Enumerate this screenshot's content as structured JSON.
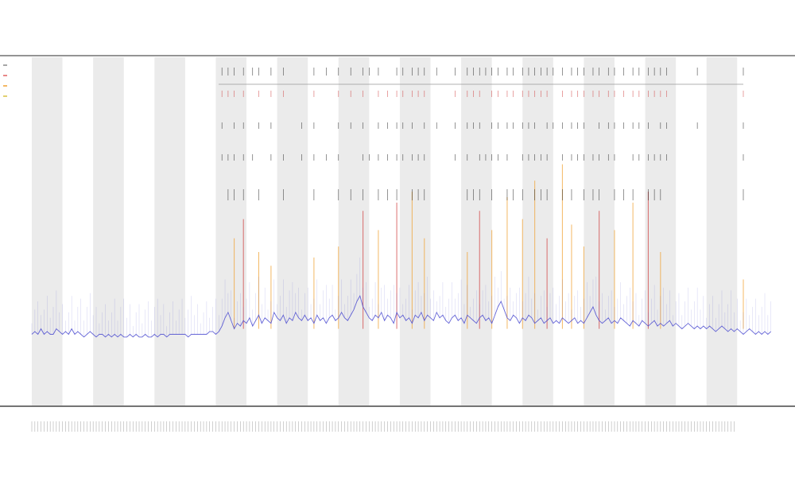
{
  "chart_data": {
    "type": "line",
    "title": "",
    "subtitle": "",
    "xlabel": "",
    "ylabel": "",
    "grid": false,
    "legend_position": "top-left",
    "legend": [
      {
        "name": "",
        "color": "#888888"
      },
      {
        "name": "",
        "color": "#e06060"
      },
      {
        "name": "",
        "color": "#f0a030"
      },
      {
        "name": "",
        "color": "#d8c040"
      }
    ],
    "colors": {
      "main_line": "#4a4ad0",
      "spike_orange": "#f0a030",
      "spike_red": "#d04040",
      "spike_black": "#202020",
      "band": "#ebebeb",
      "axis": "#555555"
    },
    "x_count": 240,
    "band_period": 10,
    "series": [
      {
        "name": "",
        "values": [
          0.1,
          0.11,
          0.1,
          0.12,
          0.1,
          0.11,
          0.1,
          0.1,
          0.12,
          0.11,
          0.1,
          0.11,
          0.1,
          0.12,
          0.1,
          0.11,
          0.1,
          0.09,
          0.1,
          0.11,
          0.1,
          0.09,
          0.1,
          0.1,
          0.09,
          0.1,
          0.09,
          0.1,
          0.09,
          0.1,
          0.09,
          0.09,
          0.1,
          0.09,
          0.1,
          0.09,
          0.09,
          0.1,
          0.09,
          0.09,
          0.1,
          0.09,
          0.1,
          0.1,
          0.09,
          0.1,
          0.1,
          0.1,
          0.1,
          0.1,
          0.1,
          0.09,
          0.1,
          0.1,
          0.1,
          0.1,
          0.1,
          0.1,
          0.11,
          0.11,
          0.1,
          0.11,
          0.13,
          0.16,
          0.18,
          0.15,
          0.12,
          0.14,
          0.13,
          0.15,
          0.14,
          0.16,
          0.13,
          0.15,
          0.17,
          0.14,
          0.16,
          0.15,
          0.14,
          0.18,
          0.16,
          0.15,
          0.17,
          0.14,
          0.16,
          0.15,
          0.18,
          0.16,
          0.15,
          0.17,
          0.15,
          0.16,
          0.14,
          0.17,
          0.15,
          0.16,
          0.14,
          0.16,
          0.17,
          0.15,
          0.16,
          0.18,
          0.16,
          0.15,
          0.17,
          0.19,
          0.22,
          0.24,
          0.2,
          0.18,
          0.16,
          0.15,
          0.17,
          0.16,
          0.18,
          0.15,
          0.17,
          0.16,
          0.14,
          0.18,
          0.16,
          0.17,
          0.15,
          0.16,
          0.14,
          0.17,
          0.16,
          0.18,
          0.15,
          0.17,
          0.16,
          0.15,
          0.18,
          0.16,
          0.17,
          0.15,
          0.14,
          0.16,
          0.17,
          0.15,
          0.16,
          0.14,
          0.17,
          0.16,
          0.15,
          0.14,
          0.16,
          0.17,
          0.15,
          0.16,
          0.14,
          0.17,
          0.2,
          0.22,
          0.19,
          0.16,
          0.15,
          0.17,
          0.16,
          0.14,
          0.16,
          0.15,
          0.17,
          0.16,
          0.14,
          0.15,
          0.16,
          0.14,
          0.15,
          0.16,
          0.14,
          0.15,
          0.14,
          0.16,
          0.15,
          0.14,
          0.15,
          0.16,
          0.14,
          0.15,
          0.14,
          0.16,
          0.18,
          0.2,
          0.17,
          0.15,
          0.14,
          0.15,
          0.16,
          0.14,
          0.15,
          0.14,
          0.16,
          0.15,
          0.14,
          0.13,
          0.15,
          0.14,
          0.13,
          0.15,
          0.14,
          0.13,
          0.14,
          0.15,
          0.13,
          0.14,
          0.13,
          0.14,
          0.15,
          0.13,
          0.14,
          0.13,
          0.12,
          0.13,
          0.14,
          0.13,
          0.12,
          0.13,
          0.12,
          0.13,
          0.12,
          0.13,
          0.12,
          0.11,
          0.12,
          0.13,
          0.12,
          0.11,
          0.12,
          0.11,
          0.12,
          0.11,
          0.1,
          0.11,
          0.12,
          0.11,
          0.1,
          0.11,
          0.1,
          0.11,
          0.1,
          0.11
        ]
      }
    ],
    "spikes": [
      {
        "x": 66,
        "value": 0.45,
        "color": "#f0a030"
      },
      {
        "x": 69,
        "value": 0.52,
        "color": "#d04040"
      },
      {
        "x": 74,
        "value": 0.4,
        "color": "#f0a030"
      },
      {
        "x": 78,
        "value": 0.35,
        "color": "#f0a030"
      },
      {
        "x": 92,
        "value": 0.38,
        "color": "#f0a030"
      },
      {
        "x": 100,
        "value": 0.42,
        "color": "#f0a030"
      },
      {
        "x": 108,
        "value": 0.55,
        "color": "#d04040"
      },
      {
        "x": 113,
        "value": 0.48,
        "color": "#f0a030"
      },
      {
        "x": 119,
        "value": 0.58,
        "color": "#d04040"
      },
      {
        "x": 124,
        "value": 0.62,
        "color": "#f0a030"
      },
      {
        "x": 128,
        "value": 0.45,
        "color": "#f0a030"
      },
      {
        "x": 142,
        "value": 0.4,
        "color": "#f0a030"
      },
      {
        "x": 146,
        "value": 0.55,
        "color": "#d04040"
      },
      {
        "x": 150,
        "value": 0.48,
        "color": "#f0a030"
      },
      {
        "x": 155,
        "value": 0.6,
        "color": "#f0a030"
      },
      {
        "x": 160,
        "value": 0.52,
        "color": "#f0a030"
      },
      {
        "x": 164,
        "value": 0.66,
        "color": "#f0a030"
      },
      {
        "x": 168,
        "value": 0.45,
        "color": "#d04040"
      },
      {
        "x": 173,
        "value": 0.72,
        "color": "#f0a030"
      },
      {
        "x": 176,
        "value": 0.5,
        "color": "#f0a030"
      },
      {
        "x": 180,
        "value": 0.42,
        "color": "#f0a030"
      },
      {
        "x": 185,
        "value": 0.55,
        "color": "#d04040"
      },
      {
        "x": 190,
        "value": 0.48,
        "color": "#f0a030"
      },
      {
        "x": 196,
        "value": 0.58,
        "color": "#f0a030"
      },
      {
        "x": 201,
        "value": 0.62,
        "color": "#d04040"
      },
      {
        "x": 205,
        "value": 0.4,
        "color": "#f0a030"
      },
      {
        "x": 232,
        "value": 0.3,
        "color": "#f0a030"
      }
    ],
    "markers": [
      {
        "x": 62,
        "rows": [
          1,
          2,
          3
        ]
      },
      {
        "x": 64,
        "rows": [
          1,
          3,
          4
        ]
      },
      {
        "x": 66,
        "rows": [
          1,
          2,
          3,
          4
        ]
      },
      {
        "x": 69,
        "rows": [
          1,
          2,
          3,
          4
        ]
      },
      {
        "x": 72,
        "rows": [
          1,
          3
        ]
      },
      {
        "x": 74,
        "rows": [
          1,
          2,
          4
        ]
      },
      {
        "x": 78,
        "rows": [
          1,
          2,
          3
        ]
      },
      {
        "x": 82,
        "rows": [
          1,
          3,
          4
        ]
      },
      {
        "x": 88,
        "rows": [
          2,
          3
        ]
      },
      {
        "x": 92,
        "rows": [
          1,
          2,
          3,
          4
        ]
      },
      {
        "x": 96,
        "rows": [
          1,
          3
        ]
      },
      {
        "x": 100,
        "rows": [
          1,
          2,
          3,
          4
        ]
      },
      {
        "x": 104,
        "rows": [
          1,
          2,
          4
        ]
      },
      {
        "x": 108,
        "rows": [
          1,
          2,
          3,
          4
        ]
      },
      {
        "x": 110,
        "rows": [
          1,
          3
        ]
      },
      {
        "x": 113,
        "rows": [
          1,
          2,
          3,
          4
        ]
      },
      {
        "x": 116,
        "rows": [
          2,
          3,
          4
        ]
      },
      {
        "x": 119,
        "rows": [
          1,
          2,
          3,
          4
        ]
      },
      {
        "x": 121,
        "rows": [
          1,
          2,
          3
        ]
      },
      {
        "x": 124,
        "rows": [
          1,
          2,
          3,
          4
        ]
      },
      {
        "x": 126,
        "rows": [
          1,
          3,
          4
        ]
      },
      {
        "x": 128,
        "rows": [
          1,
          2,
          3,
          4
        ]
      },
      {
        "x": 132,
        "rows": [
          1,
          2
        ]
      },
      {
        "x": 138,
        "rows": [
          1,
          2,
          3
        ]
      },
      {
        "x": 142,
        "rows": [
          1,
          2,
          3,
          4
        ]
      },
      {
        "x": 144,
        "rows": [
          1,
          2,
          4
        ]
      },
      {
        "x": 146,
        "rows": [
          1,
          2,
          3,
          4
        ]
      },
      {
        "x": 148,
        "rows": [
          1,
          3
        ]
      },
      {
        "x": 150,
        "rows": [
          1,
          2,
          3,
          4
        ]
      },
      {
        "x": 152,
        "rows": [
          1,
          2,
          3
        ]
      },
      {
        "x": 155,
        "rows": [
          1,
          2,
          3,
          4
        ]
      },
      {
        "x": 157,
        "rows": [
          1,
          2,
          4
        ]
      },
      {
        "x": 160,
        "rows": [
          1,
          2,
          3,
          4
        ]
      },
      {
        "x": 162,
        "rows": [
          1,
          2,
          3
        ]
      },
      {
        "x": 164,
        "rows": [
          1,
          2,
          3,
          4
        ]
      },
      {
        "x": 166,
        "rows": [
          1,
          3,
          4
        ]
      },
      {
        "x": 168,
        "rows": [
          1,
          2,
          3,
          4
        ]
      },
      {
        "x": 170,
        "rows": [
          1,
          2
        ]
      },
      {
        "x": 173,
        "rows": [
          1,
          2,
          3,
          4
        ]
      },
      {
        "x": 176,
        "rows": [
          1,
          2,
          3,
          4
        ]
      },
      {
        "x": 178,
        "rows": [
          1,
          2,
          3
        ]
      },
      {
        "x": 180,
        "rows": [
          1,
          2,
          3,
          4
        ]
      },
      {
        "x": 183,
        "rows": [
          1,
          3,
          4
        ]
      },
      {
        "x": 185,
        "rows": [
          1,
          2,
          3,
          4
        ]
      },
      {
        "x": 188,
        "rows": [
          1,
          2,
          3
        ]
      },
      {
        "x": 190,
        "rows": [
          1,
          2,
          3,
          4
        ]
      },
      {
        "x": 193,
        "rows": [
          1,
          2,
          4
        ]
      },
      {
        "x": 196,
        "rows": [
          1,
          2,
          3,
          4
        ]
      },
      {
        "x": 198,
        "rows": [
          1,
          2,
          3
        ]
      },
      {
        "x": 201,
        "rows": [
          1,
          2,
          3,
          4
        ]
      },
      {
        "x": 203,
        "rows": [
          1,
          3,
          4
        ]
      },
      {
        "x": 205,
        "rows": [
          1,
          2,
          3,
          4
        ]
      },
      {
        "x": 207,
        "rows": [
          1,
          2,
          3
        ]
      },
      {
        "x": 217,
        "rows": [
          1,
          2
        ]
      },
      {
        "x": 232,
        "rows": [
          1,
          2,
          3,
          4
        ]
      }
    ]
  }
}
